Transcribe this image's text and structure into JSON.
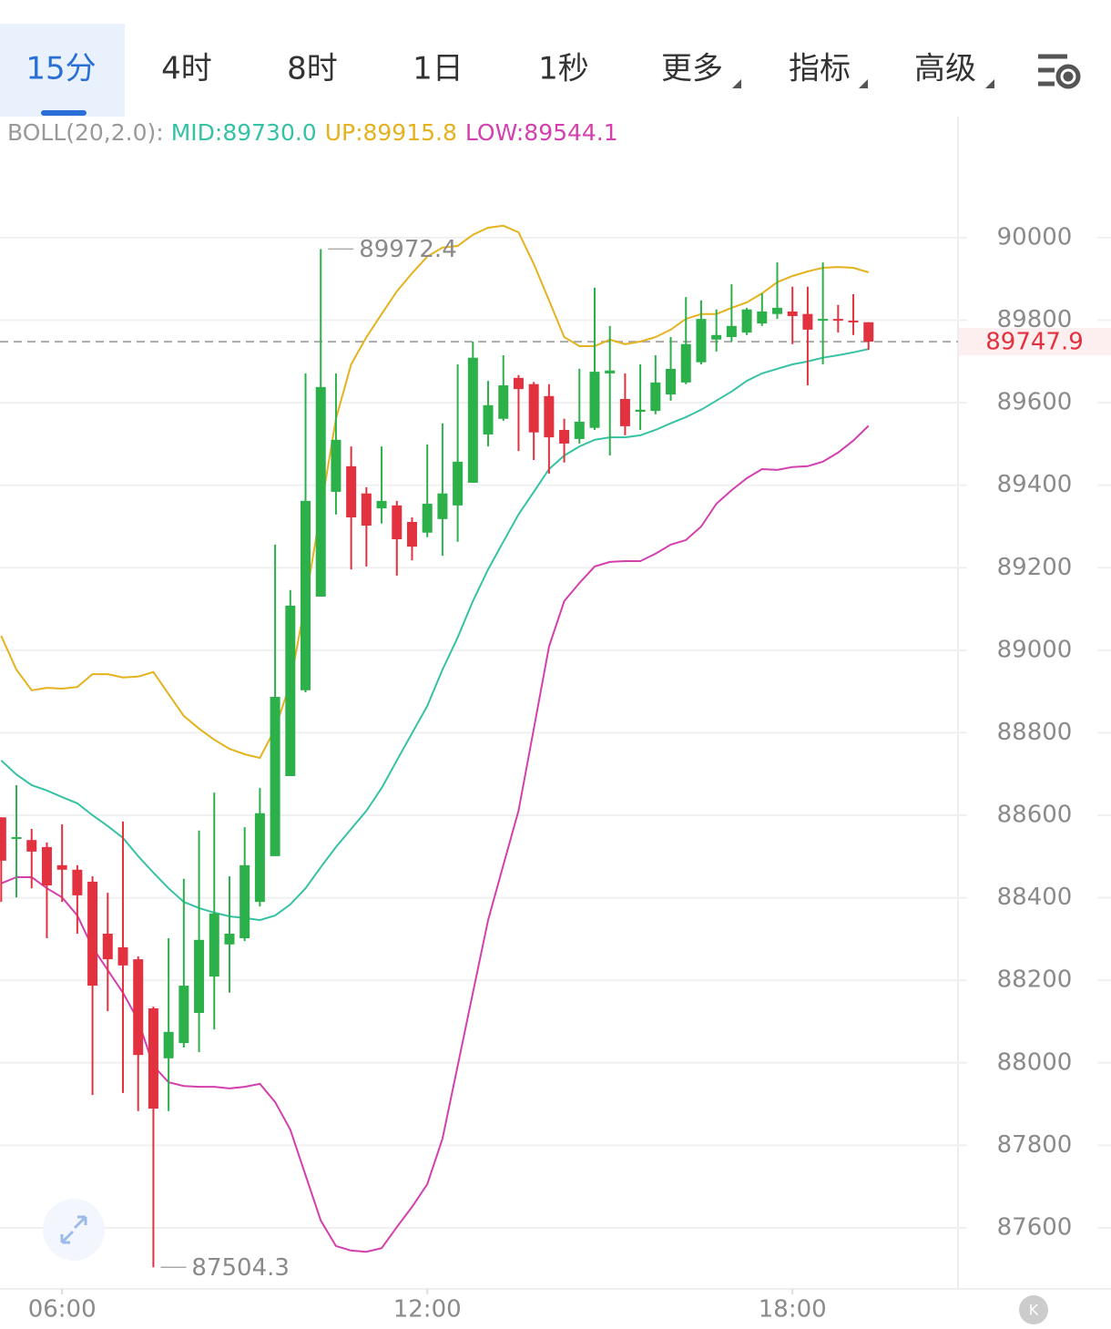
{
  "toolbar": {
    "tabs": [
      "15分",
      "4时",
      "8时",
      "1日",
      "1秒",
      "更多",
      "指标",
      "高级"
    ]
  },
  "chart_data": {
    "type": "candlestick",
    "indicator": "BOLL(20,2.0):",
    "up_color": "#2bb04a",
    "down_color": "#e2323f",
    "x": [
      5,
      5.25,
      5.5,
      5.75,
      6,
      6.25,
      6.5,
      6.75,
      7,
      7.25,
      7.5,
      7.75,
      8,
      8.25,
      8.5,
      8.75,
      9,
      9.25,
      9.5,
      9.75,
      10,
      10.25,
      10.5,
      10.75,
      11,
      11.25,
      11.5,
      11.75,
      12,
      12.25,
      12.5,
      12.75,
      13,
      13.25,
      13.5,
      13.75,
      14,
      14.25,
      14.5,
      14.75,
      15,
      15.25,
      15.5,
      15.75,
      16,
      16.25,
      16.5,
      16.75,
      17,
      17.25,
      17.5,
      17.75,
      18,
      18.25,
      18.5,
      18.75,
      19,
      19.25
    ],
    "open": [
      88595,
      88543,
      88540,
      88523,
      88479,
      88468,
      88439,
      88313,
      88280,
      88251,
      88132,
      88011,
      88048,
      88121,
      88209,
      88287,
      88302,
      88390,
      88501,
      88695,
      88903,
      89130,
      89384,
      89446,
      89380,
      89344,
      89351,
      89311,
      89285,
      89318,
      89351,
      89406,
      89523,
      89561,
      89660,
      89645,
      89616,
      89534,
      89512,
      89539,
      89671,
      89609,
      89578,
      89580,
      89620,
      89649,
      89698,
      89753,
      89759,
      89770,
      89792,
      89815,
      89821,
      89815,
      89799,
      89803,
      89799,
      89795
    ],
    "high": [
      88595,
      88673,
      88567,
      88534,
      88578,
      88479,
      88452,
      88412,
      88585,
      88258,
      88136,
      88302,
      88446,
      88563,
      88655,
      88452,
      88571,
      88666,
      89256,
      89146,
      89671,
      89972.4,
      89671,
      89494,
      89395,
      89494,
      89362,
      89322,
      89499,
      89550,
      89693,
      89748,
      89653,
      89715,
      89667,
      89650,
      89645,
      89561,
      89682,
      89879,
      89786,
      89671,
      89693,
      89715,
      89759,
      89856,
      89848,
      89826,
      89887,
      89830,
      89865,
      89940,
      89881,
      89881,
      89940,
      89837,
      89863,
      89795
    ],
    "low": [
      88390,
      88401,
      88423,
      88302,
      88390,
      88313,
      87922,
      88125,
      87927,
      87883,
      87504.3,
      87883,
      88037,
      88026,
      88081,
      88170,
      88295,
      88379,
      88501,
      88695,
      88898,
      89130,
      89329,
      89196,
      89203,
      89307,
      89181,
      89218,
      89274,
      89229,
      89263,
      89406,
      89494,
      89556,
      89483,
      89461,
      89428,
      89455,
      89501,
      89534,
      89472,
      89521,
      89534,
      89572,
      89605,
      89645,
      89693,
      89724,
      89748,
      89764,
      89786,
      89803,
      89742,
      89642,
      89693,
      89770,
      89764,
      89728
    ],
    "close": [
      88490,
      88547,
      88512,
      88430,
      88468,
      88406,
      88187,
      88251,
      88236,
      88019,
      87889,
      88075,
      88187,
      88298,
      88362,
      88313,
      88479,
      88605,
      88887,
      89108,
      89362,
      89638,
      89510,
      89322,
      89302,
      89362,
      89269,
      89251,
      89355,
      89380,
      89457,
      89709,
      89594,
      89642,
      89633,
      89528,
      89516,
      89501,
      89554,
      89675,
      89678,
      89543,
      89583,
      89649,
      89682,
      89742,
      89803,
      89764,
      89786,
      89826,
      89821,
      89830,
      89810,
      89777,
      89803,
      89799,
      89795,
      89747.9
    ],
    "series": [
      {
        "name": "MID:89730.0",
        "color": "#35c2a4",
        "values": [
          88733,
          88699,
          88673,
          88660,
          88644,
          88629,
          88600,
          88574,
          88545,
          88501,
          88461,
          88423,
          88390,
          88375,
          88364,
          88355,
          88351,
          88346,
          88357,
          88384,
          88423,
          88474,
          88523,
          88567,
          88611,
          88666,
          88733,
          88799,
          88865,
          88953,
          89031,
          89119,
          89196,
          89263,
          89329,
          89384,
          89439,
          89472,
          89494,
          89510,
          89516,
          89516,
          89521,
          89534,
          89550,
          89565,
          89583,
          89605,
          89627,
          89653,
          89671,
          89682,
          89693,
          89700,
          89709,
          89715,
          89722,
          89730.0
        ]
      },
      {
        "name": "UP:89915.8",
        "color": "#e5b21e",
        "values": [
          89035,
          88953,
          88903,
          88909,
          88907,
          88911,
          88942,
          88942,
          88934,
          88936,
          88947,
          88894,
          88841,
          88810,
          88783,
          88761,
          88748,
          88739,
          88810,
          88920,
          89119,
          89340,
          89561,
          89693,
          89759,
          89815,
          89870,
          89914,
          89954,
          89976,
          89980,
          90007,
          90024,
          90029,
          90013,
          89936,
          89848,
          89759,
          89737,
          89737,
          89753,
          89742,
          89748,
          89759,
          89777,
          89803,
          89815,
          89815,
          89830,
          89843,
          89865,
          89892,
          89907,
          89918,
          89927,
          89929,
          89927,
          89915.8
        ]
      },
      {
        "name": "LOW:89544.1",
        "color": "#d43fae",
        "values": [
          88435,
          88450,
          88450,
          88423,
          88401,
          88357,
          88280,
          88225,
          88170,
          88103,
          87993,
          87953,
          87944,
          87942,
          87942,
          87938,
          87942,
          87949,
          87905,
          87838,
          87728,
          87618,
          87556,
          87545,
          87542,
          87551,
          87602,
          87651,
          87706,
          87816,
          87993,
          88170,
          88346,
          88479,
          88611,
          88810,
          89009,
          89119,
          89163,
          89203,
          89214,
          89216,
          89216,
          89234,
          89256,
          89267,
          89300,
          89355,
          89388,
          89417,
          89439,
          89437,
          89444,
          89446,
          89457,
          89479,
          89508,
          89544.1
        ]
      }
    ],
    "xlim": [
      4.98,
      20.72
    ],
    "xticks": [
      {
        "value": 6,
        "label": "06:00"
      },
      {
        "value": 12,
        "label": "12:00"
      },
      {
        "value": 18,
        "label": "18:00"
      }
    ],
    "ylim": [
      87452,
      90289
    ],
    "yticks": [
      87600,
      87800,
      88000,
      88200,
      88400,
      88600,
      88800,
      89000,
      89200,
      89400,
      89600,
      89800,
      90000
    ],
    "grid": true
  }
}
